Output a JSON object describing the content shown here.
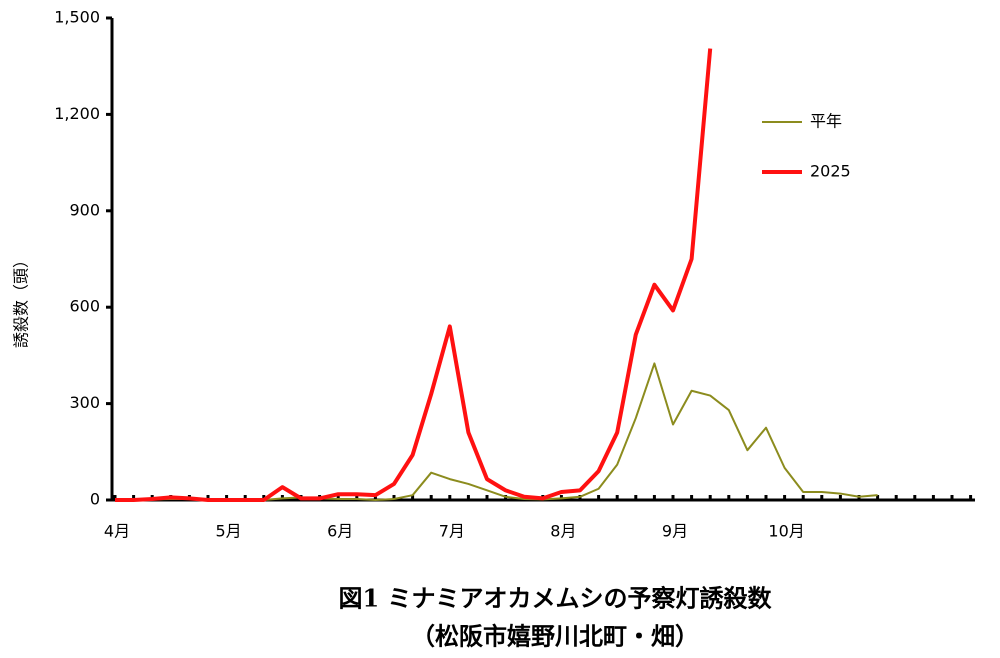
{
  "chart_data": {
    "type": "line",
    "title": "図1 ミナミアオカメムシの予察灯誘殺数",
    "subtitle": "（松阪市嬉野川北町・畑）",
    "y_label": "誘殺数（頭）",
    "categories": [
      "4月",
      null,
      null,
      null,
      null,
      null,
      "5月",
      null,
      null,
      null,
      null,
      null,
      "6月",
      null,
      null,
      null,
      null,
      null,
      "7月",
      null,
      null,
      null,
      null,
      null,
      "8月",
      null,
      null,
      null,
      null,
      null,
      "9月",
      null,
      null,
      null,
      null,
      null,
      "10月",
      null,
      null,
      null,
      null,
      null,
      null,
      null,
      null,
      null,
      null
    ],
    "series": [
      {
        "name": "平年",
        "color": "#8c8c1e",
        "width": 2,
        "values": [
          0,
          0,
          2,
          3,
          3,
          2,
          0,
          0,
          0,
          5,
          8,
          5,
          3,
          3,
          0,
          3,
          15,
          85,
          65,
          50,
          30,
          10,
          3,
          2,
          5,
          10,
          35,
          110,
          255,
          425,
          235,
          340,
          325,
          280,
          155,
          225,
          100,
          25,
          25,
          20,
          10,
          15,
          null,
          null,
          null,
          null,
          null
        ]
      },
      {
        "name": "2025",
        "color": "#ff1111",
        "width": 4,
        "values": [
          0,
          0,
          3,
          8,
          5,
          0,
          0,
          0,
          0,
          40,
          5,
          5,
          18,
          18,
          15,
          50,
          140,
          330,
          540,
          210,
          65,
          30,
          10,
          5,
          25,
          30,
          90,
          210,
          515,
          670,
          590,
          750,
          1405,
          null,
          null,
          null,
          null,
          null,
          null,
          null,
          null,
          null,
          null,
          null,
          null,
          null,
          null
        ]
      }
    ],
    "ylim": [
      0,
      1500
    ],
    "yticks": [
      0,
      300,
      600,
      900,
      {
        "value": 1200,
        "label": "1,200"
      },
      {
        "value": 1500,
        "label": "1,500"
      }
    ],
    "grid": false,
    "legend": "upper right"
  }
}
